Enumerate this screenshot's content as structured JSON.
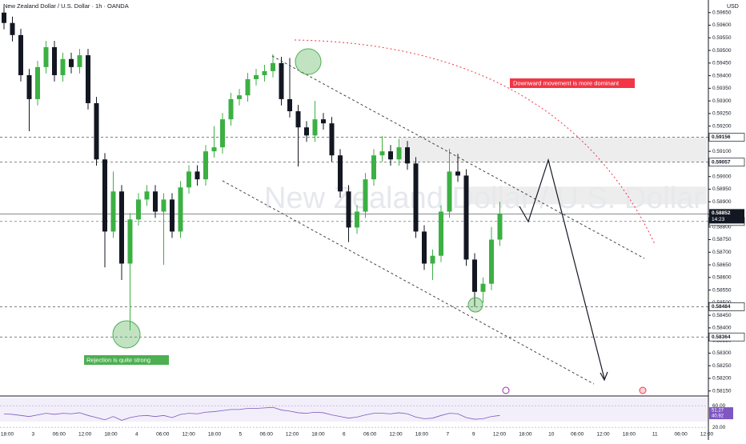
{
  "header": {
    "title": "New Zealand Dollar / U.S. Dollar · 1h · OANDA",
    "currency": "USD"
  },
  "chart_data": {
    "type": "candlestick",
    "watermark": "New Zealand Dollar / U.S. Dollar",
    "x_labels": [
      "18:00",
      "3",
      "06:00",
      "12:00",
      "18:00",
      "4",
      "06:00",
      "12:00",
      "18:00",
      "5",
      "06:00",
      "12:00",
      "18:00",
      "6",
      "06:00",
      "12:00",
      "18:00",
      "7",
      "9",
      "12:00",
      "18:00",
      "10",
      "06:00",
      "12:00",
      "18:00",
      "11",
      "06:00",
      "12:00"
    ],
    "open": [
      0.5965,
      0.59609,
      0.59561,
      0.59402,
      0.59307,
      0.59434,
      0.59513,
      0.59402,
      0.59466,
      0.59434,
      0.59481,
      0.59291,
      0.59068,
      0.58782,
      0.58941,
      0.58655,
      0.5883,
      0.58909,
      0.58941,
      0.58861,
      0.58909,
      0.58782,
      0.58957,
      0.5902,
      0.58989,
      0.591,
      0.59116,
      0.59227,
      0.59307,
      0.59322,
      0.59386,
      0.59402,
      0.59418,
      0.5945,
      0.59307,
      0.59259,
      0.59195,
      0.59163,
      0.59227,
      0.59211,
      0.59084,
      0.58941,
      0.58798,
      0.58861,
      0.58989,
      0.59084,
      0.591,
      0.59068,
      0.59116,
      0.59052,
      0.58782,
      0.58655,
      0.58686,
      0.58861,
      0.5902,
      0.59004,
      0.58671,
      0.58543,
      0.58575,
      0.5875
    ],
    "high": [
      0.59675,
      0.59634,
      0.59586,
      0.59427,
      0.59459,
      0.59538,
      0.59538,
      0.59491,
      0.59491,
      0.59506,
      0.59506,
      0.59316,
      0.59093,
      0.5902,
      0.58966,
      0.58855,
      0.58934,
      0.58966,
      0.58966,
      0.58934,
      0.58934,
      0.58982,
      0.59045,
      0.59045,
      0.59125,
      0.592,
      0.59252,
      0.59332,
      0.59347,
      0.59411,
      0.59427,
      0.59443,
      0.59485,
      0.59475,
      0.5947,
      0.59284,
      0.5922,
      0.593,
      0.59252,
      0.59236,
      0.59109,
      0.58966,
      0.58886,
      0.59014,
      0.59109,
      0.5916,
      0.59125,
      0.5915,
      0.59141,
      0.59077,
      0.58807,
      0.58711,
      0.58886,
      0.5911,
      0.5909,
      0.59029,
      0.58696,
      0.586,
      0.588,
      0.589
    ],
    "low": [
      0.59584,
      0.59536,
      0.59377,
      0.5918,
      0.59282,
      0.59409,
      0.59377,
      0.59377,
      0.59409,
      0.59409,
      0.59266,
      0.59043,
      0.5864,
      0.58757,
      0.5859,
      0.5839,
      0.58805,
      0.58884,
      0.58836,
      0.5865,
      0.58757,
      0.58757,
      0.58932,
      0.58964,
      0.58964,
      0.59075,
      0.59091,
      0.59202,
      0.59282,
      0.59297,
      0.59361,
      0.59377,
      0.59393,
      0.59282,
      0.59234,
      0.5904,
      0.59138,
      0.59138,
      0.59186,
      0.59059,
      0.58916,
      0.5874,
      0.58773,
      0.58836,
      0.58964,
      0.59059,
      0.59043,
      0.59043,
      0.59027,
      0.58757,
      0.5863,
      0.5859,
      0.58661,
      0.58836,
      0.58979,
      0.58646,
      0.58484,
      0.585,
      0.5855,
      0.58725
    ],
    "close": [
      0.59609,
      0.59561,
      0.59402,
      0.59307,
      0.59434,
      0.59513,
      0.59402,
      0.59466,
      0.59434,
      0.59481,
      0.59291,
      0.59068,
      0.58782,
      0.58941,
      0.58655,
      0.5883,
      0.58909,
      0.58941,
      0.58861,
      0.58909,
      0.58782,
      0.58957,
      0.5902,
      0.58989,
      0.591,
      0.59116,
      0.59227,
      0.59307,
      0.59322,
      0.59386,
      0.59402,
      0.59418,
      0.5945,
      0.59307,
      0.59259,
      0.59195,
      0.59163,
      0.59227,
      0.59211,
      0.59084,
      0.58941,
      0.58798,
      0.58861,
      0.58989,
      0.59084,
      0.591,
      0.59068,
      0.59116,
      0.59052,
      0.58782,
      0.58655,
      0.58686,
      0.58861,
      0.5902,
      0.59004,
      0.58671,
      0.58543,
      0.58575,
      0.5875,
      0.58852
    ],
    "up_color": "#3cb043",
    "down_color": "#131722",
    "ylim": [
      0.5813,
      0.597
    ],
    "yticks": [
      {
        "value": 0.5815,
        "label": "0.58150"
      },
      {
        "value": 0.582,
        "label": "0.58200"
      },
      {
        "value": 0.5825,
        "label": "0.58250"
      },
      {
        "value": 0.583,
        "label": "0.58300"
      },
      {
        "value": 0.5835,
        "label": "0.58350"
      },
      {
        "value": 0.584,
        "label": "0.58400"
      },
      {
        "value": 0.5845,
        "label": "0.58450"
      },
      {
        "value": 0.585,
        "label": "0.58500"
      },
      {
        "value": 0.5855,
        "label": "0.58550"
      },
      {
        "value": 0.586,
        "label": "0.58600"
      },
      {
        "value": 0.5865,
        "label": "0.58650"
      },
      {
        "value": 0.587,
        "label": "0.58700"
      },
      {
        "value": 0.5875,
        "label": "0.58750"
      },
      {
        "value": 0.588,
        "label": "0.58800"
      },
      {
        "value": 0.5885,
        "label": "0.58850"
      },
      {
        "value": 0.589,
        "label": "0.58900"
      },
      {
        "value": 0.5895,
        "label": "0.58950"
      },
      {
        "value": 0.59,
        "label": "0.59000"
      },
      {
        "value": 0.5905,
        "label": "0.59050"
      },
      {
        "value": 0.591,
        "label": "0.59100"
      },
      {
        "value": 0.5915,
        "label": "0.59150"
      },
      {
        "value": 0.592,
        "label": "0.59200"
      },
      {
        "value": 0.5925,
        "label": "0.59250"
      },
      {
        "value": 0.593,
        "label": "0.59300"
      },
      {
        "value": 0.5935,
        "label": "0.59350"
      },
      {
        "value": 0.594,
        "label": "0.59400"
      },
      {
        "value": 0.5945,
        "label": "0.59450"
      },
      {
        "value": 0.595,
        "label": "0.59500"
      },
      {
        "value": 0.5955,
        "label": "0.59550"
      },
      {
        "value": 0.596,
        "label": "0.59600"
      },
      {
        "value": 0.5965,
        "label": "0.59650"
      }
    ],
    "levels": [
      0.59156,
      0.59057,
      0.58822,
      0.58484,
      0.58364
    ],
    "zones": [
      [
        0.59156,
        0.59057
      ],
      [
        0.5896,
        0.5889
      ]
    ],
    "current_price": {
      "value": 0.58852,
      "countdown": "14:23"
    },
    "annotations": [
      "Downward movement is more dominant",
      "Rejection is quite strong"
    ],
    "rsi": {
      "values": [
        45,
        44,
        42,
        40,
        43,
        46,
        44,
        46,
        45,
        47,
        42,
        38,
        34,
        40,
        33,
        38,
        41,
        42,
        40,
        42,
        38,
        44,
        46,
        45,
        48,
        49,
        51,
        53,
        53,
        55,
        55,
        56,
        57,
        52,
        50,
        47,
        46,
        48,
        47,
        43,
        40,
        37,
        39,
        43,
        46,
        46,
        45,
        47,
        45,
        39,
        36,
        37,
        42,
        46,
        45,
        38,
        35,
        36,
        40,
        42
      ],
      "color": "#7e57c2",
      "ylim": [
        4,
        75
      ],
      "yticks": [
        {
          "value": 60,
          "label": "60.00"
        },
        {
          "value": 20,
          "label": "20.00"
        }
      ],
      "markers": [
        51.27,
        40.92
      ]
    }
  }
}
